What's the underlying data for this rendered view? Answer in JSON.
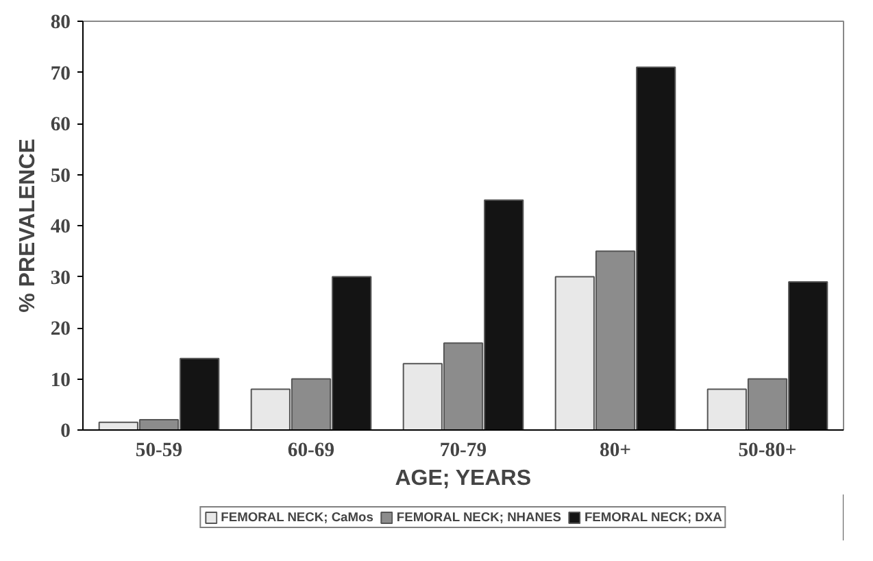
{
  "chart_data": {
    "type": "bar",
    "xlabel": "AGE; YEARS",
    "ylabel": "% PREVALENCE",
    "categories": [
      "50-59",
      "60-69",
      "70-79",
      "80+",
      "50-80+"
    ],
    "series": [
      {
        "name": "FEMORAL NECK; CaMos",
        "color": "#e8e8e8",
        "values": [
          1.5,
          8,
          13,
          30,
          8
        ]
      },
      {
        "name": "FEMORAL NECK; NHANES",
        "color": "#8c8c8c",
        "values": [
          2,
          10,
          17,
          35,
          10
        ]
      },
      {
        "name": "FEMORAL NECK; DXA",
        "color": "#141414",
        "values": [
          14,
          30,
          45,
          71,
          29
        ]
      }
    ],
    "ylim": [
      0,
      80
    ],
    "yticks": [
      0,
      10,
      20,
      30,
      40,
      50,
      60,
      70,
      80
    ],
    "grid": false,
    "legend": "bottom"
  }
}
